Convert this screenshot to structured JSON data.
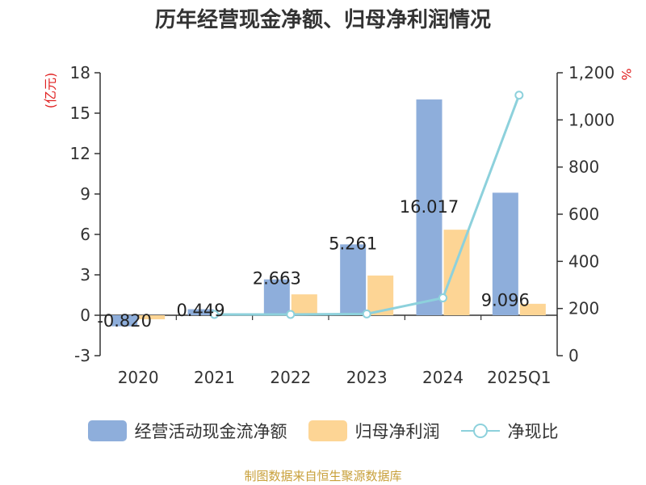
{
  "chart_data": {
    "type": "bar+line",
    "title": "历年经营现金净额、归母净利润情况",
    "categories": [
      "2020",
      "2021",
      "2022",
      "2023",
      "2024",
      "2025Q1"
    ],
    "left_axis": {
      "unit_label": "(亿元)",
      "ylim": [
        -3,
        18
      ],
      "ticks": [
        "18",
        "15",
        "12",
        "9",
        "6",
        "3",
        "0",
        "-3"
      ]
    },
    "right_axis": {
      "unit_label": "%",
      "ylim": [
        0,
        1200
      ],
      "ticks": [
        "1,200",
        "1,000",
        "800",
        "600",
        "400",
        "200",
        "0"
      ]
    },
    "series": [
      {
        "name": "经营活动现金流净额",
        "kind": "bar",
        "axis": "left",
        "color": "#8eaedb",
        "values": [
          -0.82,
          0.449,
          2.663,
          5.261,
          16.017,
          9.096
        ],
        "labels": [
          "-0.820",
          "0.449",
          "2.663",
          "5.261",
          "16.017",
          "9.096"
        ]
      },
      {
        "name": "归母净利润",
        "kind": "bar",
        "axis": "left",
        "color": "#fdd595",
        "values": [
          -0.3,
          0.03,
          1.55,
          2.95,
          6.35,
          0.85
        ]
      },
      {
        "name": "净现比",
        "kind": "line",
        "axis": "right",
        "color": "#8dd1dc",
        "values": [
          null,
          175,
          175,
          177,
          245,
          1105
        ]
      }
    ],
    "legend": [
      "经营活动现金流净额",
      "归母净利润",
      "净现比"
    ],
    "legend_position": "bottom",
    "source": "制图数据来自恒生聚源数据库",
    "grid": false
  }
}
